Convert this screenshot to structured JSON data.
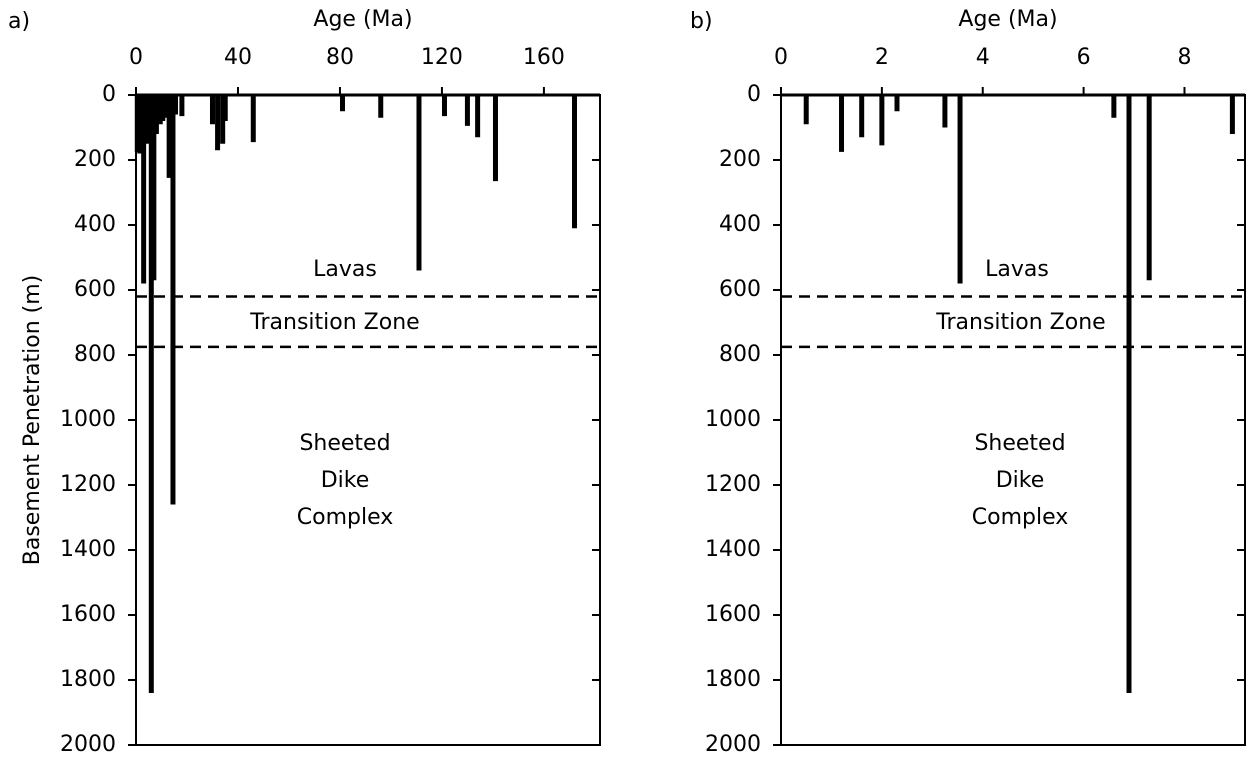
{
  "chart_data": [
    {
      "type": "bar",
      "panel_label": "a)",
      "xlabel": "Age (Ma)",
      "ylabel": "Basement Penetration (m)",
      "x": [
        0.5,
        1.5,
        3,
        4.5,
        6,
        7,
        8,
        9.5,
        10.5,
        12,
        13,
        14.5,
        15.5,
        18,
        30,
        32,
        34,
        35,
        46,
        81,
        96,
        111,
        121,
        130,
        134,
        141,
        172
      ],
      "values": [
        175,
        180,
        580,
        150,
        1840,
        570,
        120,
        90,
        80,
        70,
        255,
        1260,
        60,
        65,
        90,
        170,
        150,
        80,
        145,
        50,
        70,
        540,
        65,
        95,
        130,
        265,
        410
      ],
      "color": "#000000",
      "xlim": [
        0,
        182
      ],
      "xticks": [
        0,
        40,
        80,
        120,
        160
      ],
      "ylim": [
        0,
        2000
      ],
      "yticks": [
        0,
        200,
        400,
        600,
        800,
        1000,
        1200,
        1400,
        1600,
        1800,
        2000
      ],
      "y_inverted": true,
      "reference_lines": [
        620,
        775
      ],
      "annotations": {
        "lavas": "Lavas",
        "transition": "Transition Zone",
        "dikes": [
          "Sheeted",
          "Dike",
          "Complex"
        ]
      }
    },
    {
      "type": "bar",
      "panel_label": "b)",
      "xlabel": "Age (Ma)",
      "x": [
        0.5,
        1.2,
        1.6,
        2.0,
        2.3,
        3.25,
        3.55,
        6.6,
        6.9,
        7.3,
        8.95
      ],
      "values": [
        90,
        175,
        130,
        155,
        50,
        100,
        580,
        70,
        1840,
        570,
        120
      ],
      "color": "#000000",
      "xlim": [
        0,
        9.2
      ],
      "xticks": [
        0,
        2,
        4,
        6,
        8
      ],
      "ylim": [
        0,
        2000
      ],
      "yticks": [
        0,
        200,
        400,
        600,
        800,
        1000,
        1200,
        1400,
        1600,
        1800,
        2000
      ],
      "y_inverted": true,
      "reference_lines": [
        620,
        775
      ],
      "annotations": {
        "lavas": "Lavas",
        "transition": "Transition Zone",
        "dikes": [
          "Sheeted",
          "Dike",
          "Complex"
        ]
      }
    }
  ]
}
